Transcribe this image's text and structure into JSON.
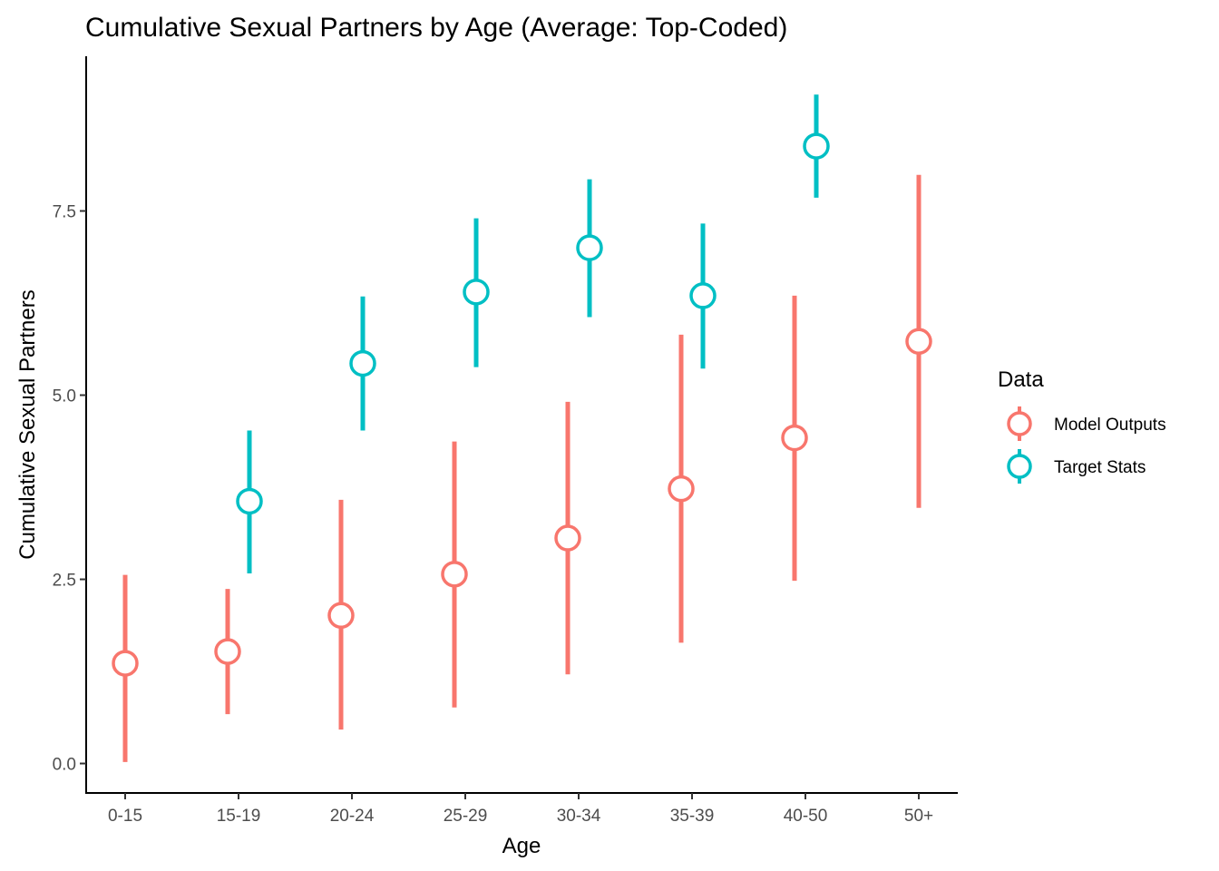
{
  "chart_data": {
    "type": "scatter",
    "title": "Cumulative Sexual Partners by Age (Average: Top-Coded)",
    "xlabel": "Age",
    "ylabel": "Cumulative Sexual Partners",
    "categories": [
      "0-15",
      "15-19",
      "20-24",
      "25-29",
      "30-34",
      "35-39",
      "40-50",
      "50+"
    ],
    "ylim": [
      -0.4,
      9.6
    ],
    "yticks": [
      0.0,
      2.5,
      5.0,
      7.5
    ],
    "ytick_labels": [
      "0.0",
      "2.5",
      "5.0",
      "7.5"
    ],
    "grid": false,
    "legend": {
      "title": "Data",
      "position": "right"
    },
    "series": [
      {
        "name": "Model Outputs",
        "color": "#F8766D",
        "categories": [
          "0-15",
          "15-19",
          "20-24",
          "25-29",
          "30-34",
          "35-39",
          "40-50",
          "50+"
        ],
        "values": [
          1.36,
          1.52,
          2.01,
          2.57,
          3.06,
          3.73,
          4.42,
          5.73
        ],
        "lower": [
          0.02,
          0.67,
          0.46,
          0.76,
          1.21,
          1.64,
          2.48,
          3.47
        ],
        "upper": [
          2.56,
          2.37,
          3.58,
          4.37,
          4.91,
          5.82,
          6.35,
          7.99
        ]
      },
      {
        "name": "Target Stats",
        "color": "#00BFC4",
        "categories": [
          "15-19",
          "20-24",
          "25-29",
          "30-34",
          "35-39",
          "40-50"
        ],
        "values": [
          3.56,
          5.43,
          6.4,
          7.0,
          6.35,
          8.38
        ],
        "lower": [
          2.58,
          4.52,
          5.38,
          6.06,
          5.36,
          7.68
        ],
        "upper": [
          4.52,
          6.34,
          7.4,
          7.93,
          7.33,
          9.08
        ]
      }
    ]
  }
}
